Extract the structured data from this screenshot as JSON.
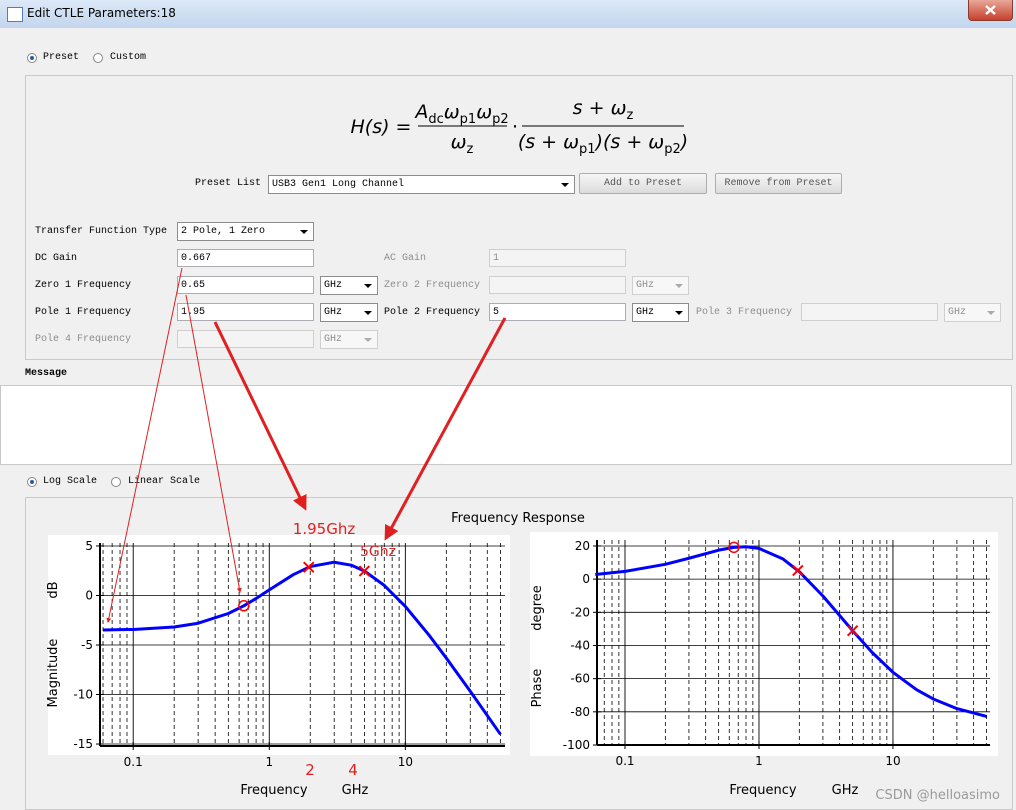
{
  "window": {
    "title": "Edit CTLE Parameters:18"
  },
  "mode": {
    "options": [
      "Preset",
      "Custom"
    ],
    "selected": 0
  },
  "formula": {
    "lhs": "H(s) =",
    "num1": [
      {
        "text": "A",
        "sub": "dc"
      },
      {
        "text": "ω",
        "sub": "p1"
      },
      {
        "text": "ω",
        "sub": "p2"
      }
    ],
    "den1": [
      {
        "text": "ω",
        "sub": "z"
      }
    ],
    "dot": "·",
    "num2": [
      {
        "text": "s + ω",
        "sub": "z"
      }
    ],
    "den2": [
      {
        "text": "(s + ω",
        "sub": "p1"
      },
      {
        "text": ")(s + ω",
        "sub": "p2"
      },
      {
        "text": ")"
      }
    ]
  },
  "preset": {
    "label": "Preset List",
    "value": "USB3 Gen1 Long Channel",
    "buttons": [
      "Add to Preset",
      "Remove from Preset"
    ]
  },
  "transfer_function": {
    "label": "Transfer Function Type",
    "value": "2 Pole, 1 Zero"
  },
  "fields": {
    "dc_gain": {
      "label": "DC Gain",
      "value": 0.667
    },
    "ac_gain": {
      "label": "AC Gain",
      "value": 1,
      "enabled": false
    },
    "zero1": {
      "label": "Zero 1 Frequency",
      "value": 0.65,
      "unit": "GHz"
    },
    "zero2": {
      "label": "Zero 2 Frequency",
      "unit": "GHz",
      "enabled": false
    },
    "pole1": {
      "label": "Pole 1 Frequency",
      "value": 1.95,
      "unit": "GHz"
    },
    "pole2": {
      "label": "Pole 2 Frequency",
      "value": 5,
      "unit": "GHz"
    },
    "pole3": {
      "label": "Pole 3 Frequency",
      "unit": "GHz",
      "enabled": false
    },
    "pole4": {
      "label": "Pole 4 Frequency",
      "unit": "GHz",
      "enabled": false
    }
  },
  "message": {
    "label": "Message"
  },
  "scale": {
    "options": [
      "Log Scale",
      "Linear Scale"
    ],
    "selected": 0
  },
  "plot_title": "Frequency Response",
  "annotations": [
    "1.95Ghz",
    "5Ghz",
    "2",
    "4"
  ],
  "watermark": "CSDN @helloasimo",
  "chart_data": [
    {
      "type": "line",
      "xlabel": "Frequency",
      "xunit": "GHz",
      "ylabel": "Magnitude",
      "yunit": "dB",
      "log_x": true,
      "grid": true,
      "xlim": [
        0.057,
        54
      ],
      "xticks": [
        0.1,
        1,
        10
      ],
      "ylim": [
        -15.2,
        5.3
      ],
      "yticks": [
        5,
        0,
        -5,
        -10,
        -15
      ],
      "x": [
        0.06,
        0.1,
        0.2,
        0.3,
        0.5,
        0.65,
        0.8,
        1,
        1.5,
        2,
        3,
        4,
        5,
        7,
        10,
        15,
        20,
        30,
        50
      ],
      "series": [
        {
          "color": "#0000ff",
          "values": [
            -3.48,
            -3.43,
            -3.18,
            -2.8,
            -1.82,
            -1.04,
            -0.3,
            0.57,
            2.1,
            2.92,
            3.36,
            3.06,
            2.47,
            1.02,
            -1.11,
            -4.04,
            -6.32,
            -9.67,
            -14.02
          ]
        }
      ],
      "markers": [
        {
          "shape": "circle",
          "x": 0.65,
          "y": -1.04,
          "color": "#ff0000"
        },
        {
          "shape": "cross",
          "x": 1.95,
          "y": 2.86,
          "color": "#ff0000"
        },
        {
          "shape": "cross",
          "x": 5,
          "y": 2.47,
          "color": "#ff0000"
        }
      ]
    },
    {
      "type": "line",
      "xlabel": "Frequency",
      "xunit": "GHz",
      "ylabel": "Phase",
      "yunit": "degree",
      "log_x": true,
      "grid": true,
      "xlim": [
        0.0618,
        53
      ],
      "xticks": [
        0.1,
        1,
        10
      ],
      "ylim": [
        -100,
        23.6
      ],
      "yticks": [
        20,
        0,
        -20,
        -40,
        -60,
        -80,
        -100
      ],
      "x": [
        0.06,
        0.1,
        0.2,
        0.3,
        0.5,
        0.65,
        0.8,
        1,
        1.5,
        2,
        3,
        4,
        5,
        7,
        10,
        15,
        20,
        30,
        50
      ],
      "series": [
        {
          "color": "#0000ff",
          "values": [
            2.82,
            4.66,
            8.95,
            12.6,
            17.48,
            19.16,
            19.51,
            18.52,
            12.3,
            4.48,
            -10.16,
            -21.9,
            -31.1,
            -44.22,
            -56.15,
            -66.64,
            -72.25,
            -78.06,
            -82.8
          ]
        }
      ],
      "markers": [
        {
          "shape": "circle",
          "x": 0.65,
          "y": 19.16,
          "color": "#ff0000"
        },
        {
          "shape": "cross",
          "x": 1.95,
          "y": 5.26,
          "color": "#ff0000"
        },
        {
          "shape": "cross",
          "x": 5,
          "y": -31.1,
          "color": "#ff0000"
        }
      ]
    }
  ]
}
